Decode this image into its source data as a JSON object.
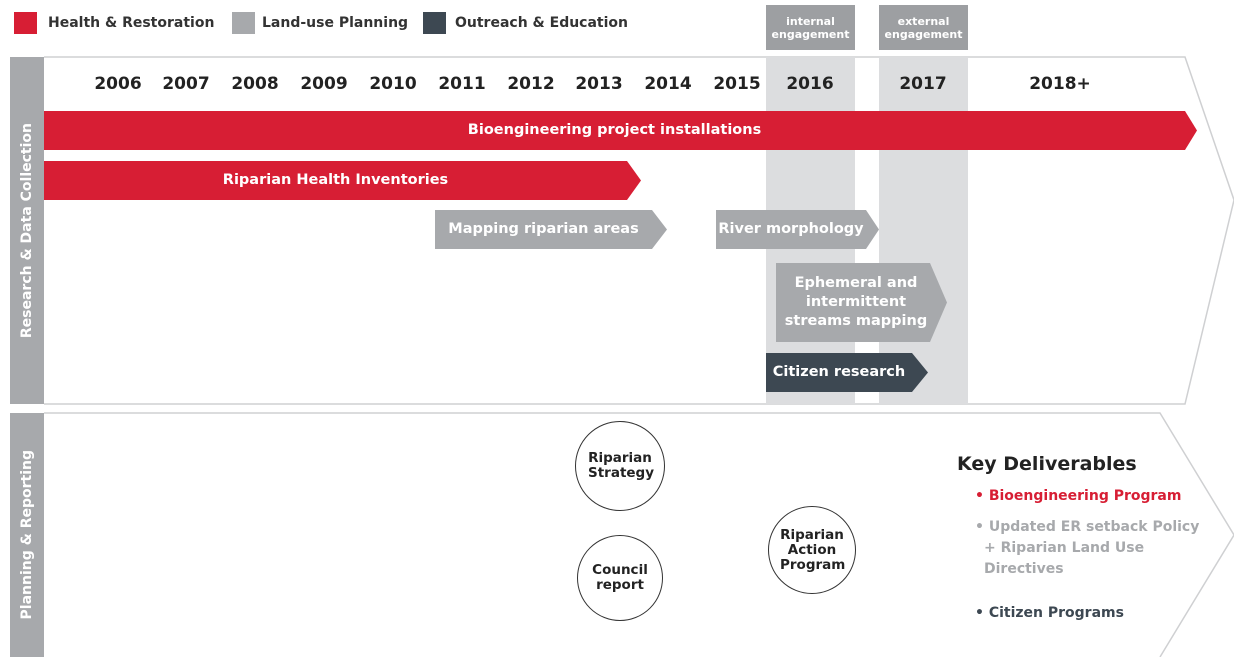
{
  "legend": [
    {
      "label": "Health & Restoration",
      "color": "#d71e34"
    },
    {
      "label": "Land-use Planning",
      "color": "#a7a9ac"
    },
    {
      "label": "Outreach & Education",
      "color": "#3d4852"
    }
  ],
  "phases": [
    "internal engagement",
    "external engagement"
  ],
  "sections": [
    "Research & Data Collection",
    "Planning & Reporting"
  ],
  "years": [
    "2006",
    "2007",
    "2008",
    "2009",
    "2010",
    "2011",
    "2012",
    "2013",
    "2014",
    "2015",
    "2016",
    "2017",
    "2018+"
  ],
  "bars": [
    {
      "label": "Bioengineering project installations",
      "color": "#d71e34"
    },
    {
      "label": "Riparian Health Inventories",
      "color": "#d71e34"
    },
    {
      "label": "Mapping riparian areas",
      "color": "#a7a9ac"
    },
    {
      "label": "River morphology",
      "color": "#a7a9ac"
    },
    {
      "label": "Ephemeral and intermittent streams mapping",
      "color": "#a7a9ac"
    },
    {
      "label": "Citizen research",
      "color": "#3d4852"
    }
  ],
  "milestones": [
    "Riparian Strategy",
    "Council report",
    "Riparian Action Program"
  ],
  "key_deliverables": {
    "title": "Key Deliverables",
    "items": [
      {
        "text": "• Bioengineering Program",
        "color": "#d71e34"
      },
      {
        "text": "• Updated ER setback Policy + Riparian Land Use Directives",
        "color": "#a7a9ac"
      },
      {
        "text": "• Citizen Programs",
        "color": "#3d4852"
      }
    ]
  }
}
